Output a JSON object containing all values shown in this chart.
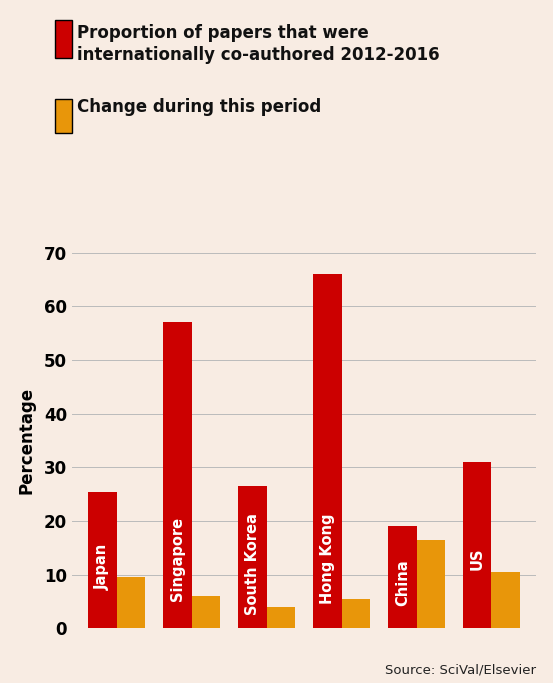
{
  "categories": [
    "Japan",
    "Singapore",
    "South Korea",
    "Hong Kong",
    "China",
    "US"
  ],
  "red_values": [
    25.5,
    57.0,
    26.5,
    66.0,
    19.0,
    31.0
  ],
  "orange_values": [
    9.5,
    6.0,
    4.0,
    5.5,
    16.5,
    10.5
  ],
  "red_color": "#cc0000",
  "orange_color": "#e8960a",
  "background_color": "#f8ece3",
  "grid_color": "#bbbbbb",
  "ylabel": "Percentage",
  "ylim": [
    0,
    70
  ],
  "yticks": [
    0,
    10,
    20,
    30,
    40,
    50,
    60,
    70
  ],
  "legend_red_text": "Proportion of papers that were\ninternationally co-authored 2012-2016",
  "legend_orange_text": "Change during this period",
  "source_text": "Source: SciVal/Elsevier",
  "bar_width": 0.38,
  "label_fontsize": 10.5,
  "tick_fontsize": 12,
  "ylabel_fontsize": 12,
  "legend_fontsize": 12,
  "source_fontsize": 9.5
}
